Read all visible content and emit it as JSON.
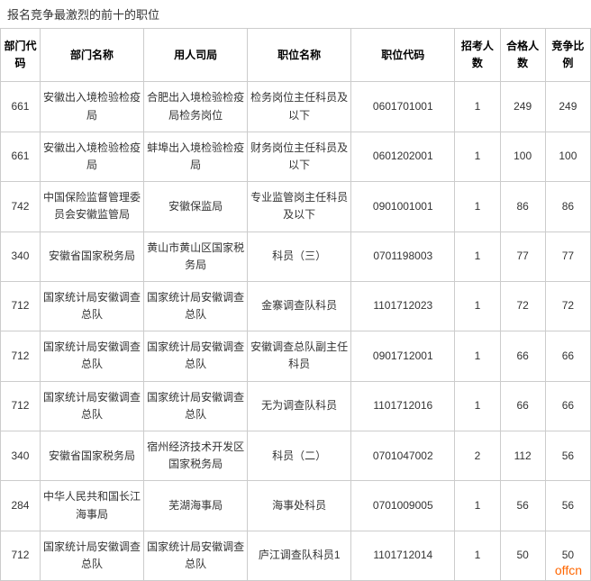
{
  "title": "报名竞争最激烈的前十的职位",
  "watermark": "offcn",
  "headers": {
    "dept_code": "部门代码",
    "dept_name": "部门名称",
    "bureau": "用人司局",
    "position": "职位名称",
    "pos_code": "职位代码",
    "recruit": "招考人数",
    "pass": "合格人数",
    "ratio": "竞争比例"
  },
  "rows": [
    {
      "dept_code": "661",
      "dept_name": "安徽出入境检验检疫局",
      "bureau": "合肥出入境检验检疫局检务岗位",
      "position": "检务岗位主任科员及以下",
      "pos_code": "0601701001",
      "recruit": "1",
      "pass": "249",
      "ratio": "249"
    },
    {
      "dept_code": "661",
      "dept_name": "安徽出入境检验检疫局",
      "bureau": "蚌埠出入境检验检疫局",
      "position": "财务岗位主任科员及以下",
      "pos_code": "0601202001",
      "recruit": "1",
      "pass": "100",
      "ratio": "100"
    },
    {
      "dept_code": "742",
      "dept_name": "中国保险监督管理委员会安徽监管局",
      "bureau": "安徽保监局",
      "position": "专业监管岗主任科员及以下",
      "pos_code": "0901001001",
      "recruit": "1",
      "pass": "86",
      "ratio": "86"
    },
    {
      "dept_code": "340",
      "dept_name": "安徽省国家税务局",
      "bureau": "黄山市黄山区国家税务局",
      "position": "科员（三）",
      "pos_code": "0701198003",
      "recruit": "1",
      "pass": "77",
      "ratio": "77"
    },
    {
      "dept_code": "712",
      "dept_name": "国家统计局安徽调查总队",
      "bureau": "国家统计局安徽调查总队",
      "position": "金寨调查队科员",
      "pos_code": "1101712023",
      "recruit": "1",
      "pass": "72",
      "ratio": "72"
    },
    {
      "dept_code": "712",
      "dept_name": "国家统计局安徽调查总队",
      "bureau": "国家统计局安徽调查总队",
      "position": "安徽调查总队副主任科员",
      "pos_code": "0901712001",
      "recruit": "1",
      "pass": "66",
      "ratio": "66"
    },
    {
      "dept_code": "712",
      "dept_name": "国家统计局安徽调查总队",
      "bureau": "国家统计局安徽调查总队",
      "position": "无为调查队科员",
      "pos_code": "1101712016",
      "recruit": "1",
      "pass": "66",
      "ratio": "66"
    },
    {
      "dept_code": "340",
      "dept_name": "安徽省国家税务局",
      "bureau": "宿州经济技术开发区国家税务局",
      "position": "科员（二）",
      "pos_code": "0701047002",
      "recruit": "2",
      "pass": "112",
      "ratio": "56"
    },
    {
      "dept_code": "284",
      "dept_name": "中华人民共和国长江海事局",
      "bureau": "芜湖海事局",
      "position": "海事处科员",
      "pos_code": "0701009005",
      "recruit": "1",
      "pass": "56",
      "ratio": "56"
    },
    {
      "dept_code": "712",
      "dept_name": "国家统计局安徽调查总队",
      "bureau": "国家统计局安徽调查总队",
      "position": "庐江调查队科员1",
      "pos_code": "1101712014",
      "recruit": "1",
      "pass": "50",
      "ratio": "50"
    }
  ]
}
